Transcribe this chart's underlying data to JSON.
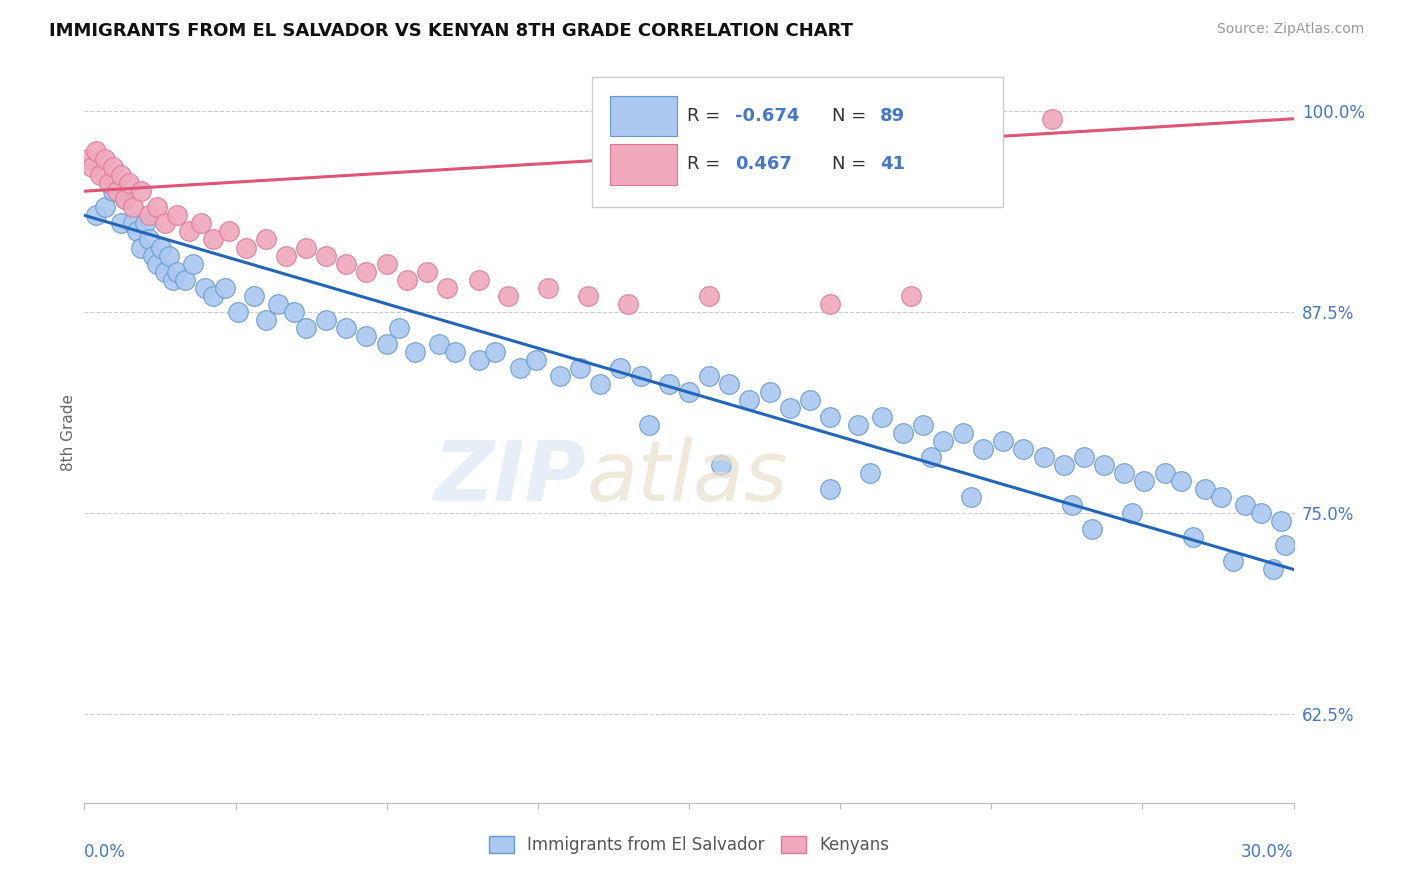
{
  "title": "IMMIGRANTS FROM EL SALVADOR VS KENYAN 8TH GRADE CORRELATION CHART",
  "source": "Source: ZipAtlas.com",
  "ylabel": "8th Grade",
  "legend_label_blue": "Immigrants from El Salvador",
  "legend_label_pink": "Kenyans",
  "R_blue": -0.674,
  "N_blue": 89,
  "R_pink": 0.467,
  "N_pink": 41,
  "blue_color": "#aac8f0",
  "blue_edge": "#6699cc",
  "pink_color": "#f0a8bc",
  "pink_edge": "#dd7799",
  "blue_line_color": "#2266bb",
  "pink_line_color": "#dd5577",
  "xlim": [
    0.0,
    30.0
  ],
  "ylim": [
    57.0,
    103.0
  ],
  "yticks": [
    62.5,
    75.0,
    87.5,
    100.0
  ],
  "xticks": [
    0.0,
    3.75,
    7.5,
    11.25,
    15.0,
    18.75,
    22.5,
    26.25,
    30.0
  ],
  "blue_scatter_x": [
    0.3,
    0.5,
    0.7,
    0.9,
    1.0,
    1.2,
    1.3,
    1.4,
    1.5,
    1.6,
    1.7,
    1.8,
    1.9,
    2.0,
    2.1,
    2.2,
    2.3,
    2.5,
    2.7,
    3.0,
    3.2,
    3.5,
    3.8,
    4.2,
    4.5,
    4.8,
    5.2,
    5.5,
    6.0,
    6.5,
    7.0,
    7.5,
    7.8,
    8.2,
    8.8,
    9.2,
    9.8,
    10.2,
    10.8,
    11.2,
    11.8,
    12.3,
    12.8,
    13.3,
    13.8,
    14.5,
    15.0,
    15.5,
    16.0,
    16.5,
    17.0,
    17.5,
    18.0,
    18.5,
    19.2,
    19.8,
    20.3,
    20.8,
    21.3,
    21.8,
    22.3,
    22.8,
    23.3,
    23.8,
    24.3,
    24.8,
    25.3,
    25.8,
    26.3,
    26.8,
    27.2,
    27.8,
    28.2,
    28.8,
    29.2,
    29.7,
    18.5,
    19.5,
    22.0,
    25.0,
    26.0,
    27.5,
    28.5,
    29.5,
    29.8,
    14.0,
    15.8,
    21.0,
    24.5
  ],
  "blue_scatter_y": [
    93.5,
    94.0,
    95.0,
    93.0,
    94.5,
    93.0,
    92.5,
    91.5,
    93.0,
    92.0,
    91.0,
    90.5,
    91.5,
    90.0,
    91.0,
    89.5,
    90.0,
    89.5,
    90.5,
    89.0,
    88.5,
    89.0,
    87.5,
    88.5,
    87.0,
    88.0,
    87.5,
    86.5,
    87.0,
    86.5,
    86.0,
    85.5,
    86.5,
    85.0,
    85.5,
    85.0,
    84.5,
    85.0,
    84.0,
    84.5,
    83.5,
    84.0,
    83.0,
    84.0,
    83.5,
    83.0,
    82.5,
    83.5,
    83.0,
    82.0,
    82.5,
    81.5,
    82.0,
    81.0,
    80.5,
    81.0,
    80.0,
    80.5,
    79.5,
    80.0,
    79.0,
    79.5,
    79.0,
    78.5,
    78.0,
    78.5,
    78.0,
    77.5,
    77.0,
    77.5,
    77.0,
    76.5,
    76.0,
    75.5,
    75.0,
    74.5,
    76.5,
    77.5,
    76.0,
    74.0,
    75.0,
    73.5,
    72.0,
    71.5,
    73.0,
    80.5,
    78.0,
    78.5,
    75.5
  ],
  "pink_scatter_x": [
    0.1,
    0.2,
    0.3,
    0.4,
    0.5,
    0.6,
    0.7,
    0.8,
    0.9,
    1.0,
    1.1,
    1.2,
    1.4,
    1.6,
    1.8,
    2.0,
    2.3,
    2.6,
    2.9,
    3.2,
    3.6,
    4.0,
    4.5,
    5.0,
    5.5,
    6.0,
    6.5,
    7.0,
    7.5,
    8.0,
    8.5,
    9.0,
    9.8,
    10.5,
    11.5,
    12.5,
    13.5,
    15.5,
    18.5,
    20.5,
    24.0
  ],
  "pink_scatter_y": [
    97.0,
    96.5,
    97.5,
    96.0,
    97.0,
    95.5,
    96.5,
    95.0,
    96.0,
    94.5,
    95.5,
    94.0,
    95.0,
    93.5,
    94.0,
    93.0,
    93.5,
    92.5,
    93.0,
    92.0,
    92.5,
    91.5,
    92.0,
    91.0,
    91.5,
    91.0,
    90.5,
    90.0,
    90.5,
    89.5,
    90.0,
    89.0,
    89.5,
    88.5,
    89.0,
    88.5,
    88.0,
    88.5,
    88.0,
    88.5,
    99.5
  ],
  "blue_line_x": [
    0.0,
    30.0
  ],
  "blue_line_y": [
    93.5,
    71.5
  ],
  "pink_line_x": [
    0.0,
    30.0
  ],
  "pink_line_y": [
    95.0,
    99.5
  ]
}
